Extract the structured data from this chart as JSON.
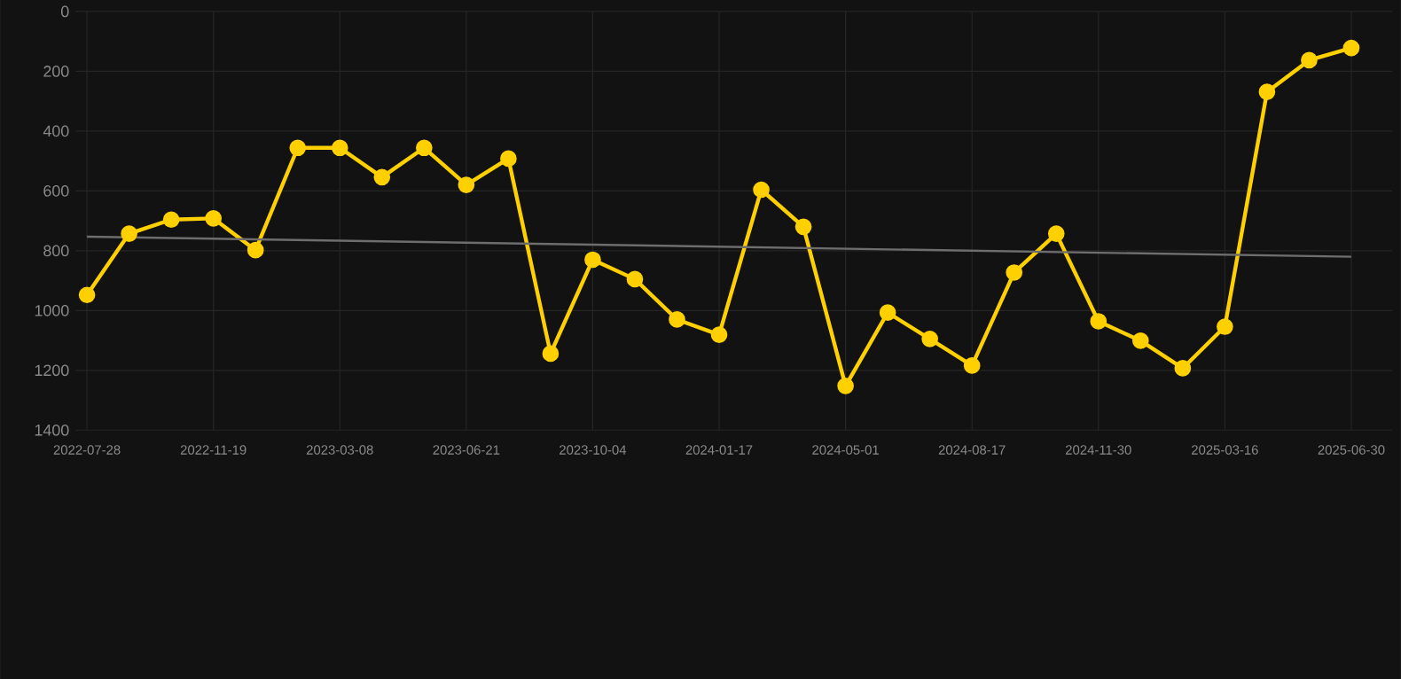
{
  "chart_data": {
    "type": "line",
    "categories": [
      "2022-07-28",
      null,
      null,
      "2022-11-19",
      null,
      null,
      "2023-03-08",
      null,
      null,
      "2023-06-21",
      null,
      null,
      "2023-10-04",
      null,
      null,
      "2024-01-17",
      null,
      null,
      "2024-05-01",
      null,
      null,
      "2024-08-17",
      null,
      null,
      "2024-11-30",
      null,
      null,
      "2025-03-16",
      null,
      null,
      "2025-06-30"
    ],
    "series": [
      {
        "color": "#ffd000",
        "marker": "circle",
        "values": [
          948,
          743,
          696,
          692,
          798,
          456,
          456,
          554,
          456,
          580,
          492,
          1144,
          830,
          895,
          1030,
          1081,
          596,
          720,
          1252,
          1007,
          1095,
          1184,
          873,
          743,
          1036,
          1101,
          1193,
          1054,
          269,
          163,
          122
        ]
      },
      {
        "type": "line",
        "color": "#6e6e6e",
        "marker": "none",
        "values": [
          753,
          null,
          null,
          null,
          null,
          null,
          null,
          null,
          null,
          null,
          null,
          null,
          null,
          null,
          null,
          null,
          null,
          null,
          null,
          null,
          null,
          null,
          null,
          null,
          null,
          null,
          null,
          null,
          null,
          null,
          820
        ]
      }
    ],
    "ylim": [
      1400,
      0
    ],
    "yticks": [
      0,
      200,
      400,
      600,
      800,
      1000,
      1200,
      1400
    ],
    "grid": true,
    "line_style": "solid"
  }
}
